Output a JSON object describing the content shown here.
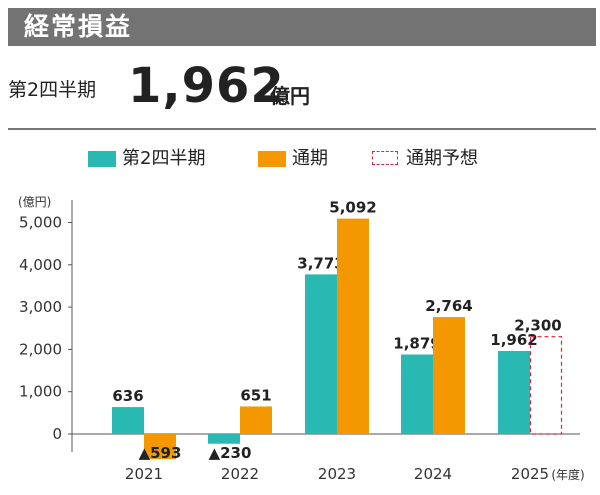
{
  "header": {
    "title": "経常損益"
  },
  "kpi": {
    "label": "第2四半期",
    "value": "1,962",
    "unit": "億円"
  },
  "colors": {
    "q2": "#29b8b2",
    "full_year": "#f39800",
    "forecast": "#d7263d",
    "header_bg": "#737373"
  },
  "chart_data": {
    "type": "bar",
    "categories": [
      "2021",
      "2022",
      "2023",
      "2024",
      "2025"
    ],
    "x_suffix": "(年度)",
    "y_unit": "(億円)",
    "ylim": [
      -400,
      5400
    ],
    "yticks": [
      0,
      1000,
      2000,
      3000,
      4000,
      5000
    ],
    "ytick_labels": [
      "0",
      "1,000",
      "2,000",
      "3,000",
      "4,000",
      "5,000"
    ],
    "legend_position": "top",
    "series": [
      {
        "name": "第2四半期",
        "values": [
          636,
          -230,
          3773,
          1879,
          1962
        ],
        "labels": [
          "636",
          "▲230",
          "3,773",
          "1,879",
          "1,962"
        ]
      },
      {
        "name": "通期",
        "values": [
          -593,
          651,
          5092,
          2764,
          null
        ],
        "labels": [
          "▲593",
          "651",
          "5,092",
          "2,764",
          ""
        ]
      },
      {
        "name": "通期予想",
        "values": [
          null,
          null,
          null,
          null,
          2300
        ],
        "labels": [
          "",
          "",
          "",
          "",
          "2,300"
        ],
        "style": "dashed"
      }
    ]
  }
}
